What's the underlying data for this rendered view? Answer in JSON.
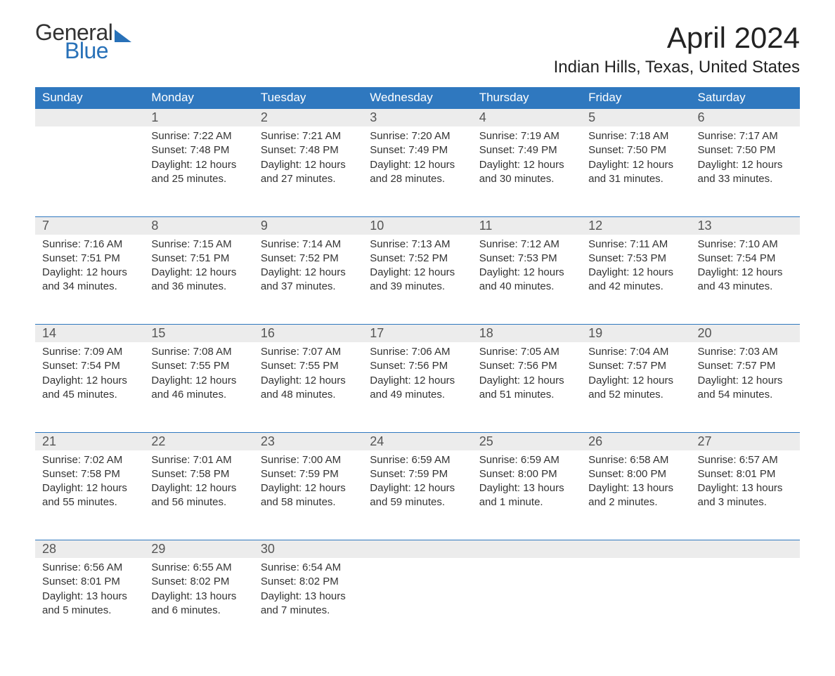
{
  "logo": {
    "line1": "General",
    "line2": "Blue"
  },
  "title": "April 2024",
  "location": "Indian Hills, Texas, United States",
  "header_bg": "#2f78bf",
  "header_text": "#ffffff",
  "daynum_bg": "#ececec",
  "row_border": "#2f78bf",
  "body_text": "#333333",
  "weekdays": [
    "Sunday",
    "Monday",
    "Tuesday",
    "Wednesday",
    "Thursday",
    "Friday",
    "Saturday"
  ],
  "weeks": [
    [
      {
        "n": "",
        "sunrise": "",
        "sunset": "",
        "dl1": "",
        "dl2": ""
      },
      {
        "n": "1",
        "sunrise": "Sunrise: 7:22 AM",
        "sunset": "Sunset: 7:48 PM",
        "dl1": "Daylight: 12 hours",
        "dl2": "and 25 minutes."
      },
      {
        "n": "2",
        "sunrise": "Sunrise: 7:21 AM",
        "sunset": "Sunset: 7:48 PM",
        "dl1": "Daylight: 12 hours",
        "dl2": "and 27 minutes."
      },
      {
        "n": "3",
        "sunrise": "Sunrise: 7:20 AM",
        "sunset": "Sunset: 7:49 PM",
        "dl1": "Daylight: 12 hours",
        "dl2": "and 28 minutes."
      },
      {
        "n": "4",
        "sunrise": "Sunrise: 7:19 AM",
        "sunset": "Sunset: 7:49 PM",
        "dl1": "Daylight: 12 hours",
        "dl2": "and 30 minutes."
      },
      {
        "n": "5",
        "sunrise": "Sunrise: 7:18 AM",
        "sunset": "Sunset: 7:50 PM",
        "dl1": "Daylight: 12 hours",
        "dl2": "and 31 minutes."
      },
      {
        "n": "6",
        "sunrise": "Sunrise: 7:17 AM",
        "sunset": "Sunset: 7:50 PM",
        "dl1": "Daylight: 12 hours",
        "dl2": "and 33 minutes."
      }
    ],
    [
      {
        "n": "7",
        "sunrise": "Sunrise: 7:16 AM",
        "sunset": "Sunset: 7:51 PM",
        "dl1": "Daylight: 12 hours",
        "dl2": "and 34 minutes."
      },
      {
        "n": "8",
        "sunrise": "Sunrise: 7:15 AM",
        "sunset": "Sunset: 7:51 PM",
        "dl1": "Daylight: 12 hours",
        "dl2": "and 36 minutes."
      },
      {
        "n": "9",
        "sunrise": "Sunrise: 7:14 AM",
        "sunset": "Sunset: 7:52 PM",
        "dl1": "Daylight: 12 hours",
        "dl2": "and 37 minutes."
      },
      {
        "n": "10",
        "sunrise": "Sunrise: 7:13 AM",
        "sunset": "Sunset: 7:52 PM",
        "dl1": "Daylight: 12 hours",
        "dl2": "and 39 minutes."
      },
      {
        "n": "11",
        "sunrise": "Sunrise: 7:12 AM",
        "sunset": "Sunset: 7:53 PM",
        "dl1": "Daylight: 12 hours",
        "dl2": "and 40 minutes."
      },
      {
        "n": "12",
        "sunrise": "Sunrise: 7:11 AM",
        "sunset": "Sunset: 7:53 PM",
        "dl1": "Daylight: 12 hours",
        "dl2": "and 42 minutes."
      },
      {
        "n": "13",
        "sunrise": "Sunrise: 7:10 AM",
        "sunset": "Sunset: 7:54 PM",
        "dl1": "Daylight: 12 hours",
        "dl2": "and 43 minutes."
      }
    ],
    [
      {
        "n": "14",
        "sunrise": "Sunrise: 7:09 AM",
        "sunset": "Sunset: 7:54 PM",
        "dl1": "Daylight: 12 hours",
        "dl2": "and 45 minutes."
      },
      {
        "n": "15",
        "sunrise": "Sunrise: 7:08 AM",
        "sunset": "Sunset: 7:55 PM",
        "dl1": "Daylight: 12 hours",
        "dl2": "and 46 minutes."
      },
      {
        "n": "16",
        "sunrise": "Sunrise: 7:07 AM",
        "sunset": "Sunset: 7:55 PM",
        "dl1": "Daylight: 12 hours",
        "dl2": "and 48 minutes."
      },
      {
        "n": "17",
        "sunrise": "Sunrise: 7:06 AM",
        "sunset": "Sunset: 7:56 PM",
        "dl1": "Daylight: 12 hours",
        "dl2": "and 49 minutes."
      },
      {
        "n": "18",
        "sunrise": "Sunrise: 7:05 AM",
        "sunset": "Sunset: 7:56 PM",
        "dl1": "Daylight: 12 hours",
        "dl2": "and 51 minutes."
      },
      {
        "n": "19",
        "sunrise": "Sunrise: 7:04 AM",
        "sunset": "Sunset: 7:57 PM",
        "dl1": "Daylight: 12 hours",
        "dl2": "and 52 minutes."
      },
      {
        "n": "20",
        "sunrise": "Sunrise: 7:03 AM",
        "sunset": "Sunset: 7:57 PM",
        "dl1": "Daylight: 12 hours",
        "dl2": "and 54 minutes."
      }
    ],
    [
      {
        "n": "21",
        "sunrise": "Sunrise: 7:02 AM",
        "sunset": "Sunset: 7:58 PM",
        "dl1": "Daylight: 12 hours",
        "dl2": "and 55 minutes."
      },
      {
        "n": "22",
        "sunrise": "Sunrise: 7:01 AM",
        "sunset": "Sunset: 7:58 PM",
        "dl1": "Daylight: 12 hours",
        "dl2": "and 56 minutes."
      },
      {
        "n": "23",
        "sunrise": "Sunrise: 7:00 AM",
        "sunset": "Sunset: 7:59 PM",
        "dl1": "Daylight: 12 hours",
        "dl2": "and 58 minutes."
      },
      {
        "n": "24",
        "sunrise": "Sunrise: 6:59 AM",
        "sunset": "Sunset: 7:59 PM",
        "dl1": "Daylight: 12 hours",
        "dl2": "and 59 minutes."
      },
      {
        "n": "25",
        "sunrise": "Sunrise: 6:59 AM",
        "sunset": "Sunset: 8:00 PM",
        "dl1": "Daylight: 13 hours",
        "dl2": "and 1 minute."
      },
      {
        "n": "26",
        "sunrise": "Sunrise: 6:58 AM",
        "sunset": "Sunset: 8:00 PM",
        "dl1": "Daylight: 13 hours",
        "dl2": "and 2 minutes."
      },
      {
        "n": "27",
        "sunrise": "Sunrise: 6:57 AM",
        "sunset": "Sunset: 8:01 PM",
        "dl1": "Daylight: 13 hours",
        "dl2": "and 3 minutes."
      }
    ],
    [
      {
        "n": "28",
        "sunrise": "Sunrise: 6:56 AM",
        "sunset": "Sunset: 8:01 PM",
        "dl1": "Daylight: 13 hours",
        "dl2": "and 5 minutes."
      },
      {
        "n": "29",
        "sunrise": "Sunrise: 6:55 AM",
        "sunset": "Sunset: 8:02 PM",
        "dl1": "Daylight: 13 hours",
        "dl2": "and 6 minutes."
      },
      {
        "n": "30",
        "sunrise": "Sunrise: 6:54 AM",
        "sunset": "Sunset: 8:02 PM",
        "dl1": "Daylight: 13 hours",
        "dl2": "and 7 minutes."
      },
      {
        "n": "",
        "sunrise": "",
        "sunset": "",
        "dl1": "",
        "dl2": ""
      },
      {
        "n": "",
        "sunrise": "",
        "sunset": "",
        "dl1": "",
        "dl2": ""
      },
      {
        "n": "",
        "sunrise": "",
        "sunset": "",
        "dl1": "",
        "dl2": ""
      },
      {
        "n": "",
        "sunrise": "",
        "sunset": "",
        "dl1": "",
        "dl2": ""
      }
    ]
  ]
}
